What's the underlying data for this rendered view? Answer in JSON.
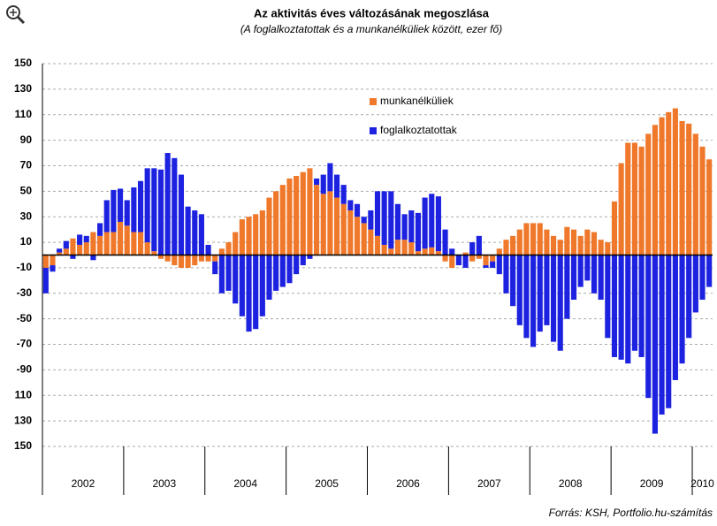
{
  "chart_data": {
    "type": "bar",
    "stacked": true,
    "title": "Az aktivitás éves változásának megoszlása",
    "subtitle": "(A foglalkoztatottak és a munkanélküliek között, ezer fő)",
    "source": "Forrás: KSH, Portfolio.hu-számítás",
    "categories": [
      "2002",
      null,
      null,
      null,
      null,
      null,
      null,
      null,
      null,
      null,
      null,
      null,
      "2003",
      null,
      null,
      null,
      null,
      null,
      null,
      null,
      null,
      null,
      null,
      null,
      "2004",
      null,
      null,
      null,
      null,
      null,
      null,
      null,
      null,
      null,
      null,
      null,
      "2005",
      null,
      null,
      null,
      null,
      null,
      null,
      null,
      null,
      null,
      null,
      null,
      "2006",
      null,
      null,
      null,
      null,
      null,
      null,
      null,
      null,
      null,
      null,
      null,
      "2007",
      null,
      null,
      null,
      null,
      null,
      null,
      null,
      null,
      null,
      null,
      null,
      "2008",
      null,
      null,
      null,
      null,
      null,
      null,
      null,
      null,
      null,
      null,
      null,
      "2009",
      null,
      null,
      null,
      null,
      null,
      null,
      null,
      null,
      null,
      null,
      null,
      "2010",
      null,
      null
    ],
    "series": [
      {
        "name": "munkanélküliek",
        "color": "#f0782a",
        "values": [
          -10,
          -8,
          2,
          5,
          13,
          8,
          10,
          18,
          15,
          18,
          18,
          26,
          23,
          18,
          18,
          10,
          3,
          -3,
          -5,
          -8,
          -10,
          -10,
          -8,
          -5,
          -5,
          -5,
          5,
          10,
          18,
          28,
          30,
          32,
          35,
          45,
          50,
          55,
          60,
          62,
          65,
          68,
          55,
          48,
          50,
          45,
          40,
          35,
          30,
          25,
          20,
          15,
          8,
          5,
          12,
          12,
          10,
          3,
          5,
          6,
          3,
          -5,
          -10,
          0,
          2,
          -5,
          -3,
          -8,
          -5,
          5,
          12,
          15,
          20,
          25,
          25,
          25,
          20,
          15,
          12,
          22,
          20,
          15,
          20,
          18,
          12,
          10,
          42,
          72,
          88,
          88,
          85,
          95,
          102,
          108,
          112,
          115,
          105,
          103,
          95,
          85,
          75
        ]
      },
      {
        "name": "foglalkoztatottak",
        "color": "#1c22e0",
        "values": [
          -20,
          -5,
          3,
          6,
          -3,
          8,
          5,
          -4,
          10,
          25,
          33,
          26,
          20,
          35,
          40,
          58,
          65,
          67,
          80,
          76,
          63,
          38,
          35,
          32,
          8,
          -10,
          -30,
          -28,
          -38,
          -48,
          -60,
          -58,
          -48,
          -35,
          -28,
          -25,
          -22,
          -15,
          -8,
          -3,
          5,
          15,
          22,
          18,
          15,
          8,
          10,
          5,
          15,
          35,
          42,
          45,
          28,
          20,
          25,
          30,
          40,
          42,
          43,
          20,
          5,
          -8,
          -10,
          10,
          15,
          -2,
          -5,
          -15,
          -30,
          -40,
          -55,
          -65,
          -72,
          -60,
          -55,
          -68,
          -75,
          -50,
          -35,
          -25,
          -20,
          -30,
          -35,
          -65,
          -80,
          -82,
          -85,
          -75,
          -80,
          -112,
          -140,
          -125,
          -120,
          -98,
          -85,
          -65,
          -45,
          -35,
          -25
        ]
      }
    ],
    "ylim": [
      -150,
      150
    ],
    "yticks": [
      150,
      130,
      110,
      90,
      70,
      50,
      30,
      10,
      -10,
      -30,
      -50,
      -70,
      -90,
      {
        "value": -110,
        "label": "110"
      },
      {
        "value": -130,
        "label": "130"
      },
      {
        "value": -150,
        "label": "150"
      }
    ],
    "grid": true,
    "legend": "top-center"
  }
}
